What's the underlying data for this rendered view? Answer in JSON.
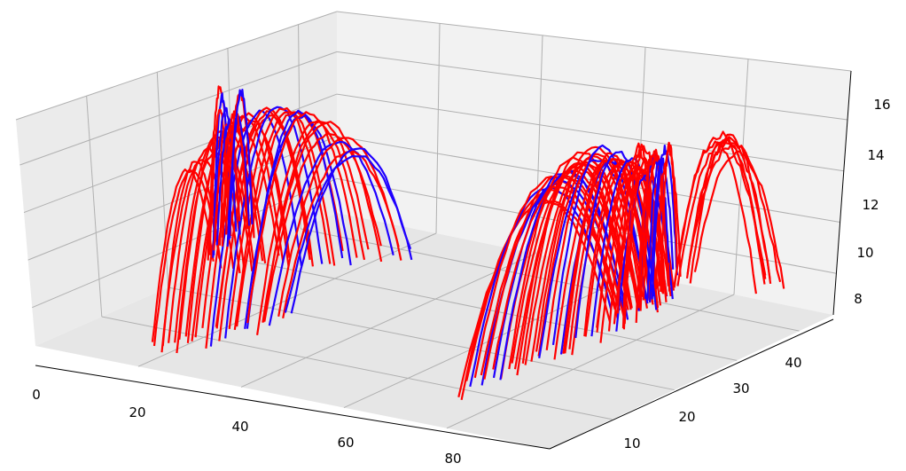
{
  "chart_data": {
    "type": "line",
    "projection": "3d",
    "title": "",
    "xlabel": "",
    "ylabel": "",
    "zlabel": "",
    "xlim": [
      -2,
      100
    ],
    "ylim": [
      2,
      52
    ],
    "zlim": [
      7.5,
      17.0
    ],
    "grid": true,
    "legend": "none",
    "x_ticks": [
      "0",
      "20",
      "40",
      "60",
      "80"
    ],
    "y_ticks": [
      "10",
      "20",
      "30",
      "40"
    ],
    "z_ticks": [
      "8",
      "10",
      "12",
      "14",
      "16"
    ],
    "series_colors": {
      "red": "#ff0000",
      "blue": "#0000ff"
    },
    "clusters": [
      {
        "name_hidden": true,
        "x_range": [
          0,
          50
        ],
        "y_center": 30,
        "apex_z": 16.6,
        "trajectories": 34,
        "blue_fraction": 0.22
      },
      {
        "name_hidden": true,
        "x_range": [
          70,
          95
        ],
        "y_center": 12,
        "apex_z": 15.1,
        "trajectories": 40,
        "blue_fraction": 0.2
      }
    ]
  },
  "colors": {
    "pane_left": "#ebebeb",
    "pane_back": "#f2f2f2",
    "pane_floor": "#e6e6e6",
    "grid": "#b0b0b0",
    "red_series": "#ff0000",
    "blue_series": "#1f00ff"
  }
}
